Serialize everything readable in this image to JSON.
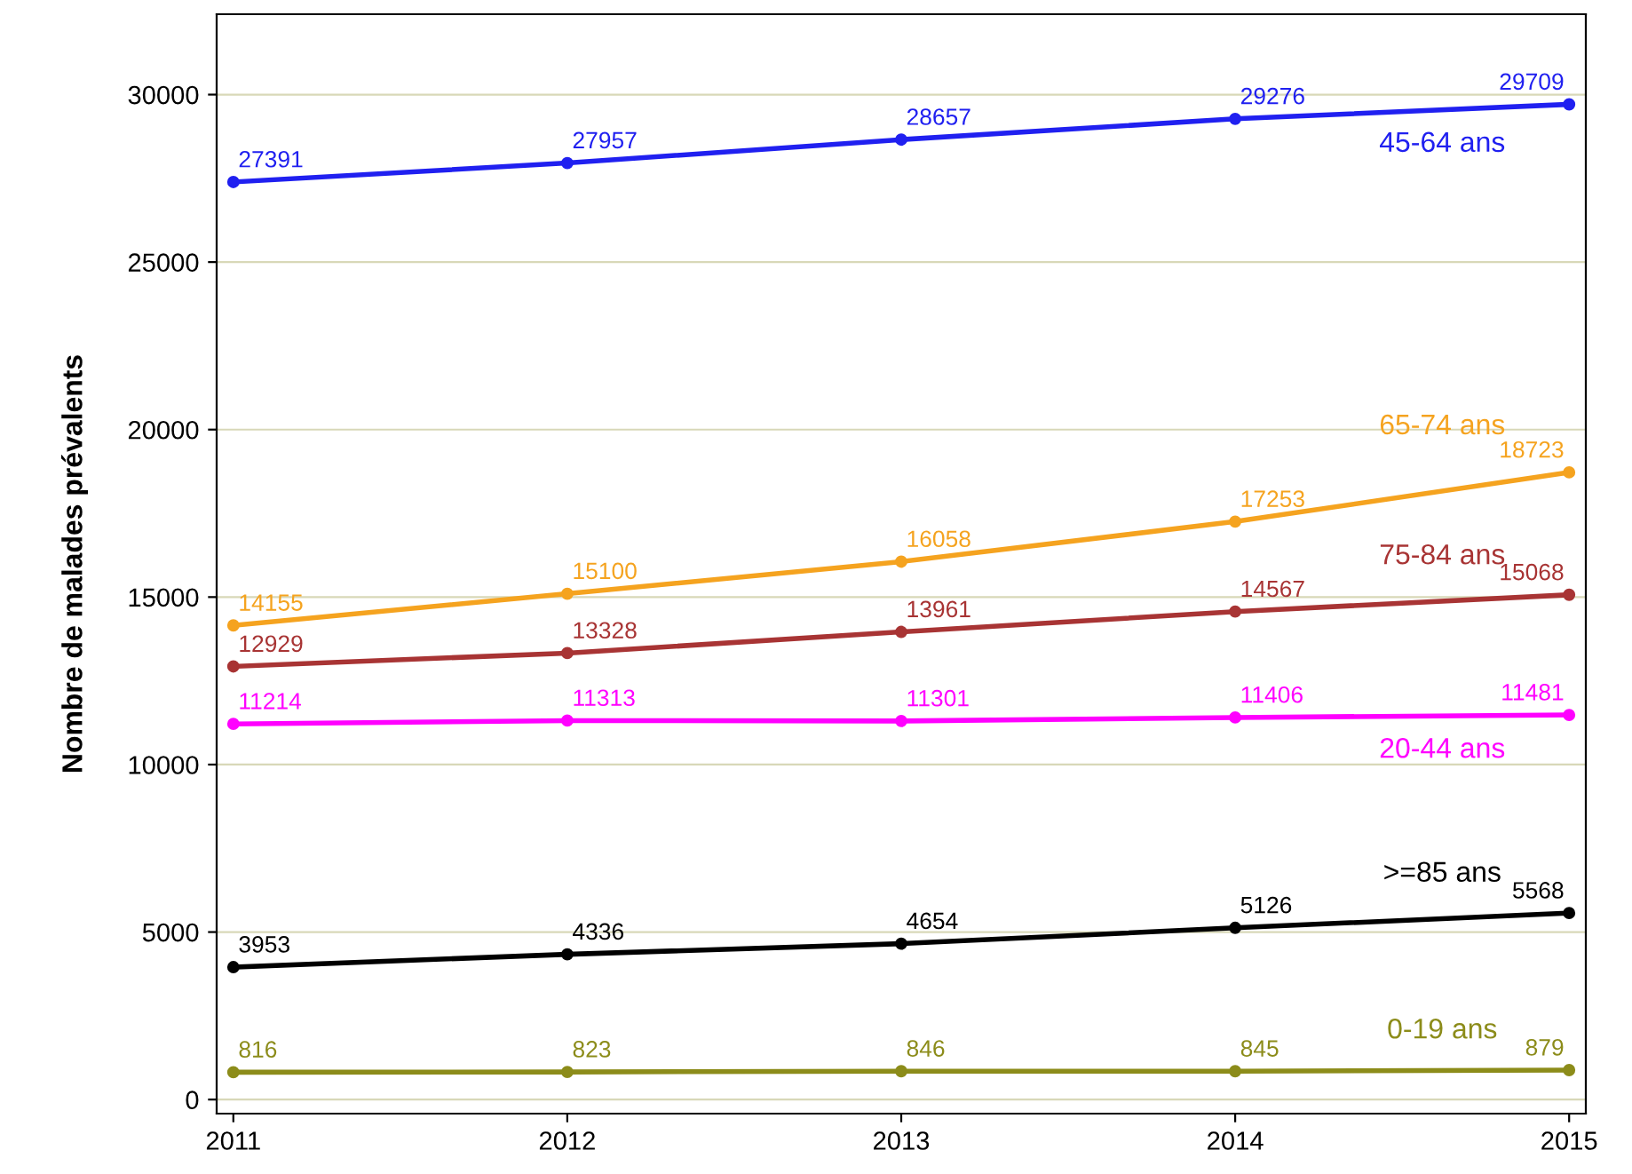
{
  "chart_data": {
    "type": "line",
    "ylabel": "Nombre de malades prévalents",
    "x": [
      2011,
      2012,
      2013,
      2014,
      2015
    ],
    "xlim": [
      2010.95,
      2015.05
    ],
    "xticks": [
      2011,
      2012,
      2013,
      2014,
      2015
    ],
    "ylim": [
      -420,
      32400
    ],
    "yticks": [
      0,
      5000,
      10000,
      15000,
      20000,
      25000,
      30000
    ],
    "grid": "y",
    "marker": "circle",
    "line_style": "solid",
    "data_labels": true,
    "legend": false,
    "series": [
      {
        "name": "45-64 ans",
        "color": "#2020f0",
        "values": [
          27391,
          27957,
          28657,
          29276,
          29709
        ]
      },
      {
        "name": "65-74 ans",
        "color": "#f5a31f",
        "values": [
          14155,
          15100,
          16058,
          17253,
          18723
        ]
      },
      {
        "name": "75-84 ans",
        "color": "#a83434",
        "values": [
          12929,
          13328,
          13961,
          14567,
          15068
        ]
      },
      {
        "name": "20-44 ans",
        "color": "#ff00ff",
        "values": [
          11214,
          11313,
          11301,
          11406,
          11481
        ]
      },
      {
        "name": ">=85 ans",
        "color": "#000000",
        "values": [
          3953,
          4336,
          4654,
          5126,
          5568
        ]
      },
      {
        "name": "0-19 ans",
        "color": "#8c8c1a",
        "values": [
          816,
          823,
          846,
          845,
          879
        ]
      }
    ]
  }
}
